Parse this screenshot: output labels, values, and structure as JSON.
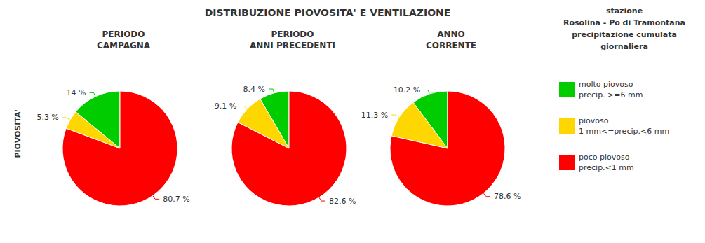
{
  "chart_data": {
    "type": "pie",
    "title": "DISTRIBUZIONE PIOVOSITA' E VENTILAZIONE",
    "ylabel": "PIOVOSITA'",
    "annotations": [
      "stazione",
      "Rosolina - Po di Tramontana",
      "precipitazione cumulata",
      "giornaliera"
    ],
    "legend": "right",
    "categories": [
      "molto piovoso\nprecip. >=6 mm",
      "piovoso\n1 mm<=precip.<6 mm",
      "poco piovoso\nprecip.<1 mm"
    ],
    "colors": [
      "#00cc00",
      "#ffd700",
      "#ff0000"
    ],
    "series": [
      {
        "name": "PERIODO\nCAMPAGNA",
        "values": [
          14.0,
          5.3,
          80.7
        ],
        "value_labels": [
          "14 %",
          "5.3 %",
          "80.7 %"
        ]
      },
      {
        "name": "PERIODO\nANNI PRECEDENTI",
        "values": [
          8.4,
          9.1,
          82.6
        ],
        "value_labels": [
          "8.4 %",
          "9.1 %",
          "82.6 %"
        ]
      },
      {
        "name": "ANNO\nCORRENTE",
        "values": [
          10.2,
          11.3,
          78.6
        ],
        "value_labels": [
          "10.2 %",
          "11.3 %",
          "78.6 %"
        ]
      }
    ]
  }
}
